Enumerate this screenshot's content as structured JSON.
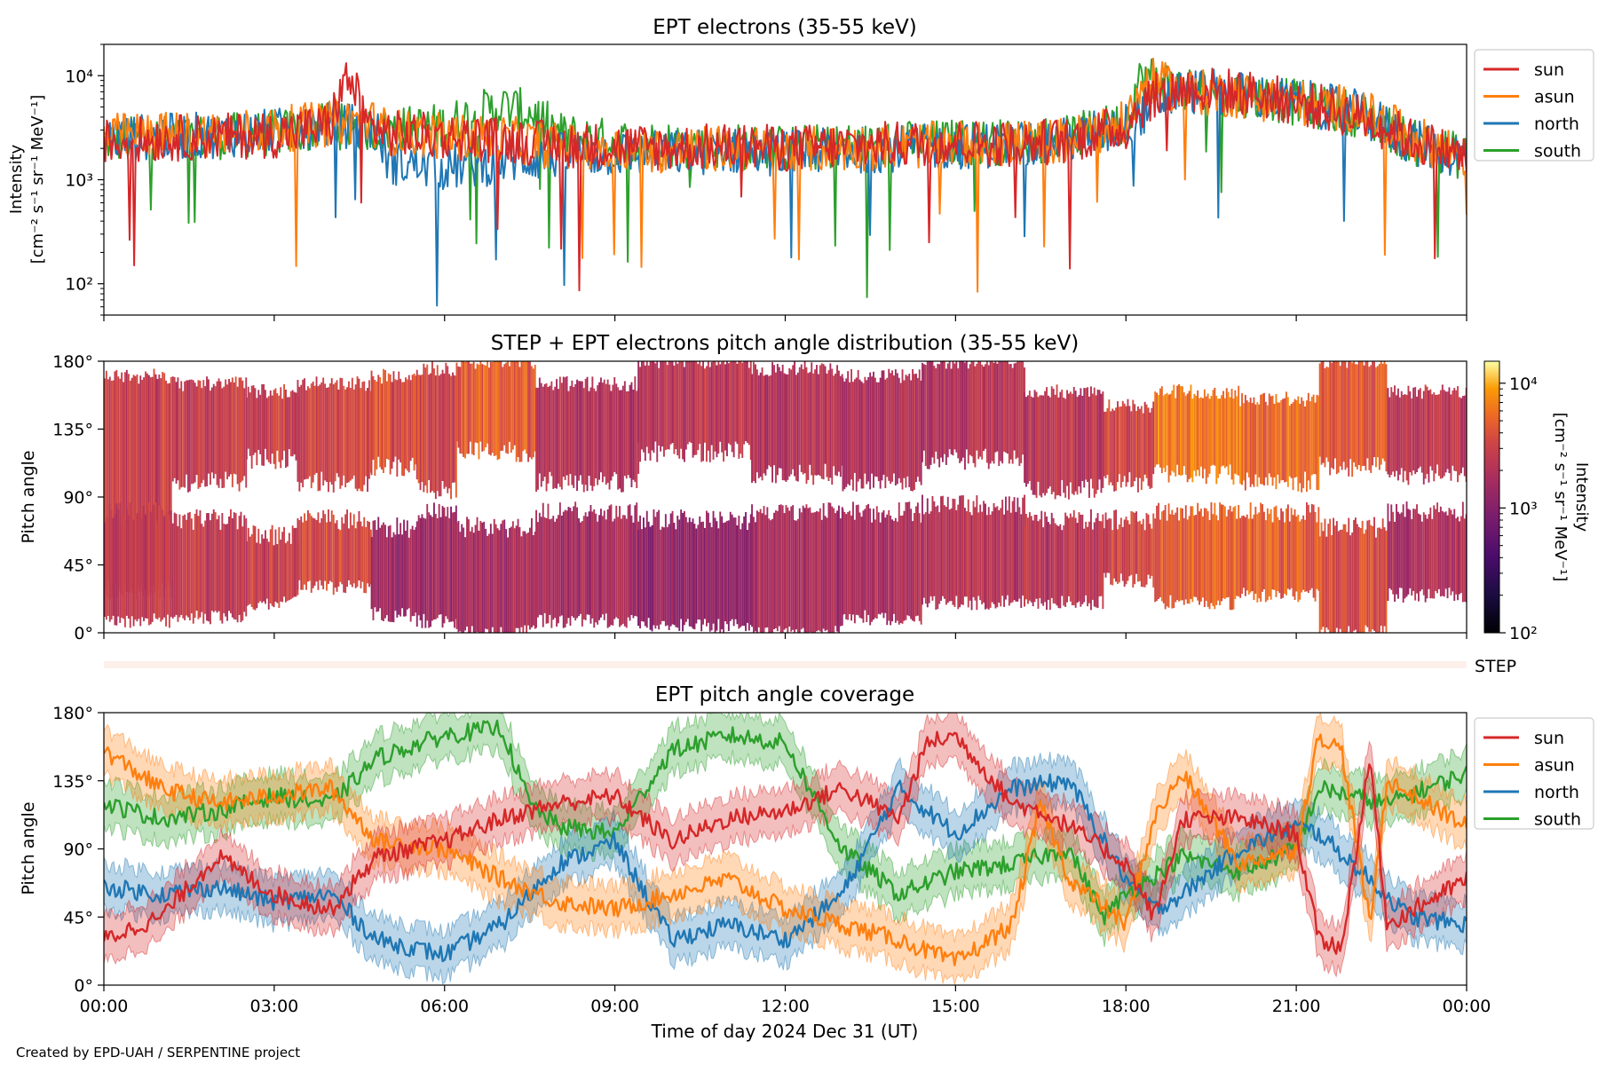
{
  "figure": {
    "credit": "Created by EPD-UAH / SERPENTINE project",
    "xlabel": "Time of day 2024 Dec 31 (UT)",
    "time_ticks": [
      "00:00",
      "03:00",
      "06:00",
      "09:00",
      "12:00",
      "15:00",
      "18:00",
      "21:00",
      "00:00"
    ]
  },
  "chart_data": [
    {
      "type": "line",
      "title": "EPT electrons (35-55 keV)",
      "ylabel_line1": "Intensity",
      "ylabel_line2": "[cm⁻² s⁻¹ sr⁻¹ MeV⁻¹]",
      "y_scale": "log",
      "ylim": [
        50,
        20000
      ],
      "y_ticks": [
        {
          "value": 100,
          "label": "10²"
        },
        {
          "value": 1000,
          "label": "10³"
        },
        {
          "value": 10000,
          "label": "10⁴"
        }
      ],
      "x_unit": "hours",
      "xlim": [
        0,
        24
      ],
      "legend_position": "outside-right-top",
      "series": [
        {
          "name": "sun",
          "color": "#d62728",
          "x": [
            0,
            1,
            2,
            3,
            4,
            4.3,
            4.6,
            5,
            6,
            7,
            8,
            9,
            10,
            11,
            12,
            13,
            14,
            15,
            16,
            17,
            18,
            18.4,
            19,
            20,
            21,
            22,
            23,
            24
          ],
          "values": [
            2300,
            2500,
            2600,
            2700,
            3300,
            9500,
            3500,
            2800,
            2600,
            2400,
            2200,
            2100,
            2000,
            2100,
            2000,
            2100,
            2200,
            2300,
            2200,
            2400,
            3200,
            6000,
            7500,
            7000,
            5500,
            4200,
            2400,
            1600
          ]
        },
        {
          "name": "asun",
          "color": "#ff7f0e",
          "x": [
            0,
            1,
            2,
            3,
            4,
            4.6,
            5,
            6,
            7,
            8,
            9,
            10,
            11,
            12,
            13,
            14,
            15,
            16,
            17,
            18,
            18.4,
            19,
            20,
            21,
            22,
            23,
            24
          ],
          "values": [
            2600,
            2700,
            2800,
            3000,
            3500,
            3800,
            2900,
            2600,
            2500,
            2100,
            2000,
            1900,
            2000,
            1900,
            2000,
            2100,
            2200,
            2200,
            2400,
            3400,
            9000,
            7000,
            6500,
            5500,
            4800,
            2500,
            1700
          ]
        },
        {
          "name": "north",
          "color": "#1f77b4",
          "x": [
            0,
            1,
            2,
            3,
            4,
            4.8,
            5,
            6,
            7,
            8,
            9,
            10,
            11,
            12,
            13,
            14,
            15,
            16,
            17,
            18,
            19,
            20,
            21,
            22,
            23,
            24
          ],
          "values": [
            2500,
            2600,
            2700,
            2900,
            3500,
            3000,
            1500,
            1300,
            1500,
            1700,
            1800,
            1800,
            1900,
            1800,
            1900,
            2000,
            2100,
            2200,
            2400,
            3300,
            7200,
            6600,
            5600,
            4500,
            2300,
            1600
          ]
        },
        {
          "name": "south",
          "color": "#2ca02c",
          "x": [
            0,
            1,
            2,
            3,
            4,
            5,
            6,
            7,
            7.6,
            8,
            9,
            10,
            11,
            12,
            13,
            14,
            15,
            16,
            17,
            18,
            18.3,
            19,
            20,
            21,
            22,
            23,
            24
          ],
          "values": [
            2400,
            2500,
            2600,
            2800,
            3300,
            3000,
            3300,
            5000,
            4200,
            2700,
            2300,
            2200,
            2100,
            2000,
            2100,
            2200,
            2300,
            2300,
            2500,
            3500,
            10000,
            7500,
            6800,
            5500,
            4400,
            2300,
            1600
          ]
        }
      ]
    },
    {
      "type": "heatmap",
      "title": "STEP + EPT electrons pitch angle distribution (35-55 keV)",
      "ylabel": "Pitch angle",
      "ylim": [
        0,
        180
      ],
      "y_ticks": [
        "0°",
        "45°",
        "90°",
        "135°",
        "180°"
      ],
      "colorbar": {
        "label_line1": "Intensity",
        "label_line2": "[cm⁻² s⁻¹ sr⁻¹ MeV⁻¹]",
        "scale": "log",
        "range": [
          100,
          15000
        ],
        "colormap": "inferno",
        "ticks": [
          {
            "value": 100,
            "label": "10²"
          },
          {
            "value": 1000,
            "label": "10³"
          },
          {
            "value": 10000,
            "label": "10⁴"
          }
        ]
      },
      "segments": [
        {
          "x0": 0.0,
          "x1": 1.2,
          "top_low": 28,
          "top_high": 170,
          "bot_low": 8,
          "bot_high": 80,
          "top_level": 2600,
          "bot_level": 2500
        },
        {
          "x0": 1.2,
          "x1": 2.5,
          "top_low": 100,
          "top_high": 165,
          "bot_low": 10,
          "bot_high": 75,
          "top_level": 2800,
          "bot_level": 2600
        },
        {
          "x0": 2.5,
          "x1": 3.4,
          "top_low": 115,
          "top_high": 160,
          "bot_low": 20,
          "bot_high": 65,
          "top_level": 2900,
          "bot_level": 2800
        },
        {
          "x0": 3.4,
          "x1": 4.7,
          "top_low": 100,
          "top_high": 165,
          "bot_low": 30,
          "bot_high": 75,
          "top_level": 3200,
          "bot_level": 3300
        },
        {
          "x0": 4.7,
          "x1": 5.5,
          "top_low": 110,
          "top_high": 170,
          "bot_low": 12,
          "bot_high": 70,
          "top_level": 3600,
          "bot_level": 1400
        },
        {
          "x0": 5.5,
          "x1": 6.2,
          "top_low": 95,
          "top_high": 175,
          "bot_low": 8,
          "bot_high": 80,
          "top_level": 3300,
          "bot_level": 1500
        },
        {
          "x0": 6.2,
          "x1": 7.6,
          "top_low": 120,
          "top_high": 180,
          "bot_low": 0,
          "bot_high": 70,
          "top_level": 4500,
          "bot_level": 1600
        },
        {
          "x0": 7.6,
          "x1": 9.4,
          "top_low": 100,
          "top_high": 165,
          "bot_low": 8,
          "bot_high": 80,
          "top_level": 2000,
          "bot_level": 1600
        },
        {
          "x0": 9.4,
          "x1": 11.4,
          "top_low": 120,
          "top_high": 180,
          "bot_low": 5,
          "bot_high": 75,
          "top_level": 2300,
          "bot_level": 1200
        },
        {
          "x0": 11.4,
          "x1": 13.0,
          "top_low": 105,
          "top_high": 175,
          "bot_low": 0,
          "bot_high": 80,
          "top_level": 2100,
          "bot_level": 1700
        },
        {
          "x0": 13.0,
          "x1": 14.4,
          "top_low": 100,
          "top_high": 170,
          "bot_low": 10,
          "bot_high": 80,
          "top_level": 2000,
          "bot_level": 1900
        },
        {
          "x0": 14.4,
          "x1": 16.2,
          "top_low": 115,
          "top_high": 180,
          "bot_low": 20,
          "bot_high": 85,
          "top_level": 2100,
          "bot_level": 2000
        },
        {
          "x0": 16.2,
          "x1": 17.6,
          "top_low": 95,
          "top_high": 160,
          "bot_low": 20,
          "bot_high": 75,
          "top_level": 2300,
          "bot_level": 2200
        },
        {
          "x0": 17.6,
          "x1": 18.5,
          "top_low": 100,
          "top_high": 150,
          "bot_low": 35,
          "bot_high": 75,
          "top_level": 3200,
          "bot_level": 3000
        },
        {
          "x0": 18.5,
          "x1": 20.0,
          "top_low": 105,
          "top_high": 160,
          "bot_low": 20,
          "bot_high": 80,
          "top_level": 6500,
          "bot_level": 5000
        },
        {
          "x0": 20.0,
          "x1": 21.4,
          "top_low": 100,
          "top_high": 155,
          "bot_low": 25,
          "bot_high": 80,
          "top_level": 5500,
          "bot_level": 4800
        },
        {
          "x0": 21.4,
          "x1": 22.6,
          "top_low": 110,
          "top_high": 180,
          "bot_low": 0,
          "bot_high": 70,
          "top_level": 4200,
          "bot_level": 3600
        },
        {
          "x0": 22.6,
          "x1": 24.0,
          "top_low": 105,
          "top_high": 160,
          "bot_low": 25,
          "bot_high": 80,
          "top_level": 2300,
          "bot_level": 2000
        }
      ]
    },
    {
      "type": "band",
      "label": "STEP",
      "color": "#fdf0ea"
    },
    {
      "type": "line",
      "title": "EPT pitch angle coverage",
      "ylabel": "Pitch angle",
      "ylim": [
        0,
        180
      ],
      "y_ticks": [
        "0°",
        "45°",
        "90°",
        "135°",
        "180°"
      ],
      "x_unit": "hours",
      "xlim": [
        0,
        24
      ],
      "band_halfwidth": 15,
      "legend_position": "outside-right-top",
      "series": [
        {
          "name": "sun",
          "color": "#d62728",
          "x": [
            0,
            1,
            2,
            3,
            4,
            4.8,
            6,
            7,
            8,
            9,
            10,
            11,
            12,
            13,
            14,
            14.5,
            15,
            16,
            16.5,
            17,
            18,
            18.5,
            19,
            20,
            21,
            21.4,
            21.8,
            22.3,
            22.6,
            24
          ],
          "values": [
            30,
            45,
            85,
            60,
            50,
            85,
            95,
            110,
            120,
            125,
            95,
            110,
            115,
            130,
            110,
            160,
            165,
            120,
            115,
            105,
            80,
            45,
            110,
            110,
            100,
            30,
            25,
            150,
            40,
            70
          ]
        },
        {
          "name": "asun",
          "color": "#ff7f0e",
          "x": [
            0,
            1,
            2,
            3,
            4,
            4.8,
            6,
            7,
            8,
            9,
            10,
            11,
            12,
            13,
            14,
            15,
            16,
            16.5,
            17,
            18,
            18.5,
            19,
            20,
            21,
            21.4,
            21.8,
            22.3,
            22.6,
            24
          ],
          "values": [
            155,
            130,
            120,
            125,
            130,
            95,
            90,
            70,
            55,
            50,
            60,
            70,
            50,
            40,
            30,
            15,
            40,
            120,
            70,
            40,
            110,
            140,
            80,
            90,
            165,
            155,
            40,
            135,
            105
          ]
        },
        {
          "name": "north",
          "color": "#1f77b4",
          "x": [
            0,
            1,
            2,
            3,
            4,
            4.8,
            6,
            7,
            8,
            9,
            10,
            11,
            12,
            13,
            14,
            15,
            16,
            17,
            18,
            18.5,
            19,
            20,
            21,
            21.4,
            22,
            23,
            24
          ],
          "values": [
            65,
            60,
            65,
            55,
            60,
            30,
            20,
            40,
            80,
            95,
            30,
            40,
            30,
            60,
            130,
            100,
            130,
            135,
            70,
            50,
            60,
            90,
            105,
            100,
            80,
            45,
            40
          ]
        },
        {
          "name": "south",
          "color": "#2ca02c",
          "x": [
            0,
            1,
            2,
            3,
            4,
            4.8,
            6,
            7,
            7.5,
            8,
            9,
            10,
            11,
            12,
            13,
            14,
            15,
            16,
            17,
            17.6,
            18,
            19,
            20,
            21,
            21.4,
            22,
            22.6,
            24
          ],
          "values": [
            120,
            110,
            115,
            125,
            120,
            150,
            165,
            170,
            120,
            105,
            100,
            155,
            165,
            160,
            90,
            60,
            75,
            80,
            90,
            45,
            60,
            85,
            75,
            90,
            130,
            125,
            120,
            140
          ]
        }
      ]
    }
  ]
}
